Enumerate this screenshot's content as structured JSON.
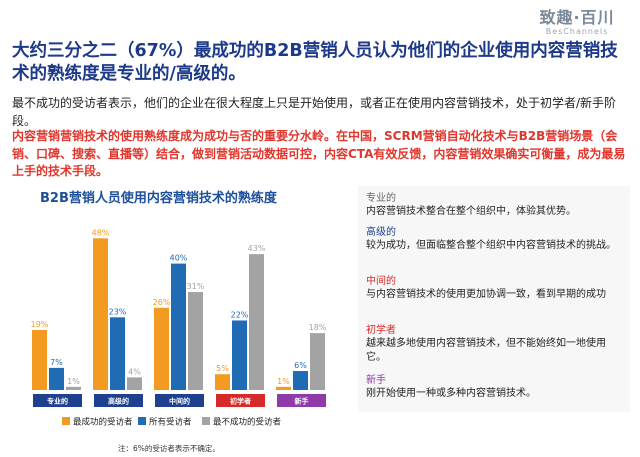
{
  "logo": {
    "name": "致趣·百川",
    "sub": "BesChannels"
  },
  "headline": "大约三分之二（67%）最成功的B2B营销人员认为他们的企业使用内容营销技术的熟练度是专业的/高级的。",
  "para1": "最不成功的受访者表示，他们的企业在很大程度上只是开始使用，或者正在使用内容营销技术，处于初学者/新手阶段。",
  "para2": "内容营销营销技术的使用熟练度成为成功与否的重要分水岭。在中国，SCRM营销自动化技术与B2B营销场景（会销、口碑、搜索、直播等）结合，做到营销活动数据可控，内容CTA有效反馈，内容营销效果确实可衡量，成为最易上手的技术手段。",
  "colors": {
    "orange": "#f29a21",
    "blue": "#1f6cb5",
    "gray": "#a3a3a3"
  },
  "chart_data": {
    "type": "bar",
    "title": "B2B营销人员使用内容营销技术的熟练度",
    "categories": [
      "专业的",
      "高级的",
      "中间的",
      "初学者",
      "新手"
    ],
    "category_colors": [
      "#1f3f8f",
      "#1f3f8f",
      "#1f3f8f",
      "#d62a2a",
      "#8e3aa8"
    ],
    "series": [
      {
        "name": "最成功的受访者",
        "values": [
          19,
          48,
          26,
          5,
          1
        ],
        "labels": [
          "19%",
          "48%",
          "26%",
          "5%",
          "1%"
        ],
        "color": "#f29a21"
      },
      {
        "name": "所有受访者",
        "values": [
          7,
          23,
          40,
          22,
          6
        ],
        "labels": [
          "7%",
          "23%",
          "40%",
          "22%",
          "6%"
        ],
        "color": "#1f6cb5"
      },
      {
        "name": "最不成功的受访者",
        "values": [
          1,
          4,
          31,
          43,
          18
        ],
        "labels": [
          "1%",
          "4%",
          "31%",
          "43%",
          "18%"
        ],
        "color": "#a3a3a3"
      }
    ],
    "ylim": [
      0,
      50
    ],
    "grid": false,
    "legend": "bottom",
    "footnote": "注：6%的受访者表示不确定。"
  },
  "levels": [
    {
      "name": "专业的",
      "desc": "内容营销技术整合在整个组织中，体验其优势。",
      "color": "#666666"
    },
    {
      "name": "高级的",
      "desc": "较为成功，但面临整合整个组织中内容营销技术的挑战。",
      "color": "#1f3f8f"
    },
    {
      "name": "中间的",
      "desc": "与内容营销技术的使用更加协调一致，看到早期的成功",
      "color": "#d62a2a"
    },
    {
      "name": "初学者",
      "desc": "越来越多地使用内容营销技术，但不能始终如一地使用它。",
      "color": "#d62a2a"
    },
    {
      "name": "新手",
      "desc": "刚开始使用一种或多种内容营销技术。",
      "color": "#8e3aa8"
    }
  ]
}
